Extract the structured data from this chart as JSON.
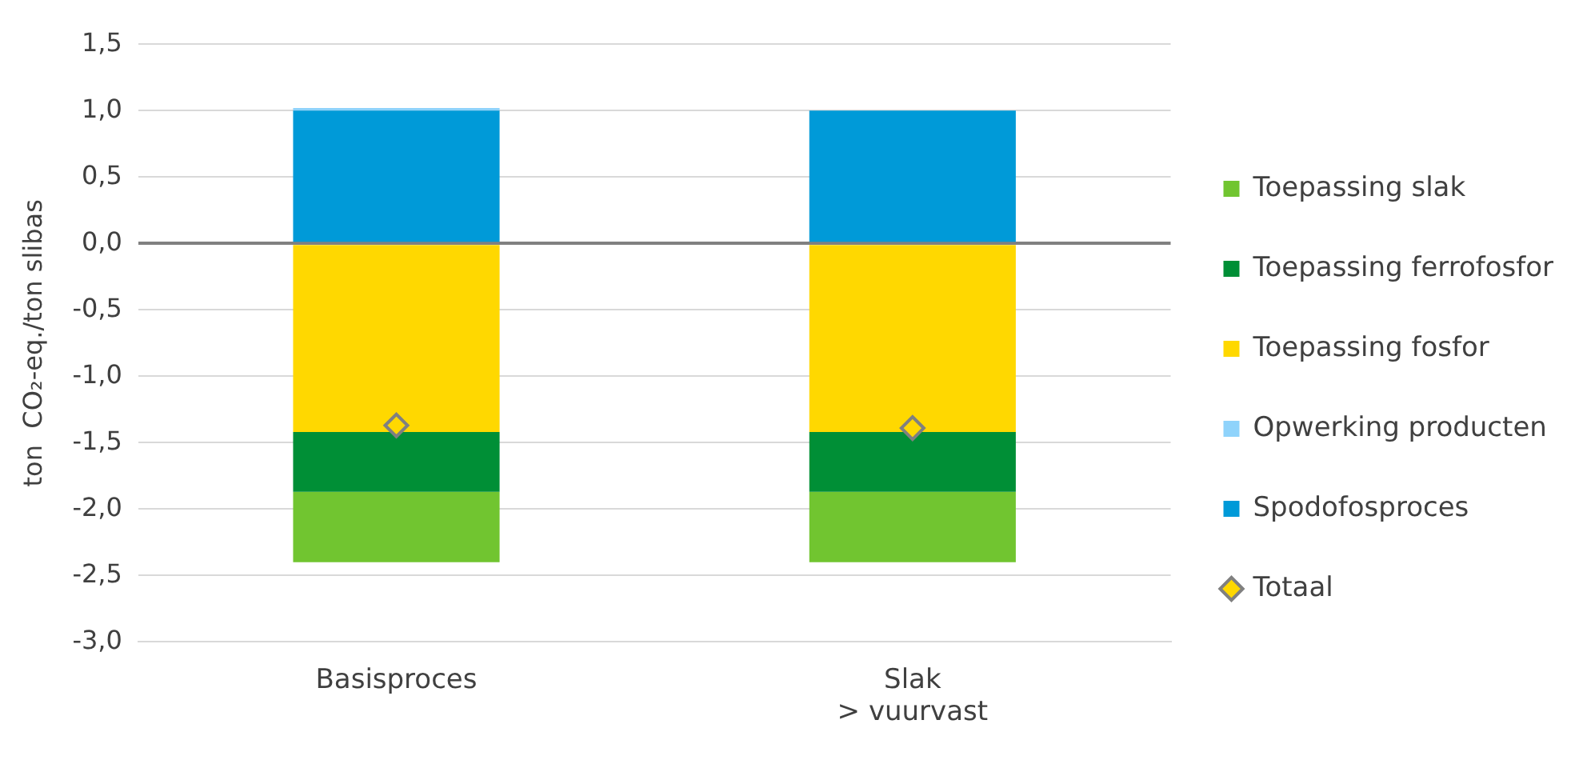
{
  "chart_data": {
    "type": "bar",
    "stacked": true,
    "ylabel": "ton  CO₂-eq./ton slibas",
    "categories": [
      "Basisproces",
      "Slak\n> vuurvast"
    ],
    "series": [
      {
        "name": "Spodofosproces",
        "color": "#009ad8",
        "values": [
          1.0,
          1.0
        ]
      },
      {
        "name": "Opwerking producten",
        "color": "#8fd3fb",
        "values": [
          0.02,
          0.0
        ]
      },
      {
        "name": "Toepassing fosfor",
        "color": "#ffd800",
        "values": [
          -1.42,
          -1.42
        ]
      },
      {
        "name": "Toepassing ferrofosfor",
        "color": "#008f36",
        "values": [
          -0.45,
          -0.45
        ]
      },
      {
        "name": "Toepassing slak",
        "color": "#71c530",
        "values": [
          -0.53,
          -0.53
        ]
      },
      {
        "name": "Totaal",
        "type": "scatter",
        "marker": "diamond",
        "color": "#ffd800",
        "x": [
          "Basisproces",
          "Slak\n> vuurvast"
        ],
        "values": [
          -1.37,
          -1.39
        ]
      }
    ],
    "ylim": [
      -3,
      1.5
    ],
    "yticks": [
      {
        "value": -3,
        "label": "-3,0"
      },
      {
        "value": -2.5,
        "label": "-2,5"
      },
      {
        "value": -2,
        "label": "-2,0"
      },
      {
        "value": -1.5,
        "label": "-1,5"
      },
      {
        "value": -1,
        "label": "-1,0"
      },
      {
        "value": -0.5,
        "label": "-0,5"
      },
      {
        "value": 0,
        "label": "0,0"
      },
      {
        "value": 0.5,
        "label": "0,5"
      },
      {
        "value": 1,
        "label": "1,0"
      },
      {
        "value": 1.5,
        "label": "1,5"
      }
    ],
    "grid": "y",
    "legend": "right"
  }
}
